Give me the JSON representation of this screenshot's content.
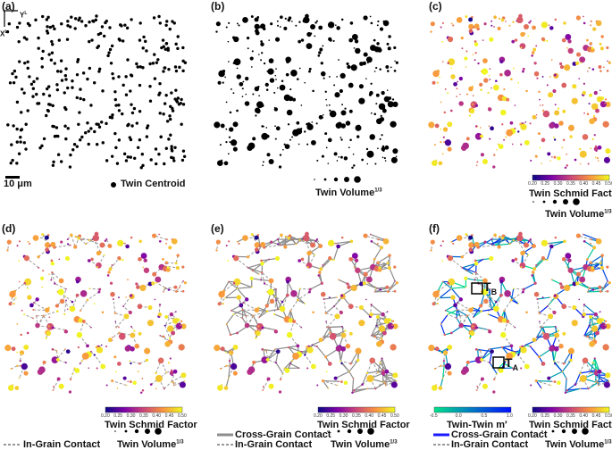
{
  "panels": {
    "a": {
      "label": "(a)",
      "legend": "Twin Centroid",
      "scalebar": "10 μm",
      "axis_y": "Y",
      "axis_x": "X",
      "axis_sup": "L"
    },
    "b": {
      "label": "(b)",
      "size_legend": "Twin Volume",
      "size_sup": "1/3"
    },
    "c": {
      "label": "(c)",
      "color_legend": "Twin Schmid Factor",
      "size_legend": "Twin Volume",
      "size_sup": "1/3"
    },
    "d": {
      "label": "(d)",
      "color_legend": "Twin Schmid Factor",
      "size_legend": "Twin Volume",
      "size_sup": "1/3",
      "in_grain": "In-Grain Contact"
    },
    "e": {
      "label": "(e)",
      "color_legend": "Twin Schmid Factor",
      "size_legend": "Twin Volume",
      "size_sup": "1/3",
      "cross_grain": "Cross-Grain Contact",
      "in_grain": "In-Grain Contact"
    },
    "f": {
      "label": "(f)",
      "color_legend": "Twin Schmid Factor",
      "mprime_legend": "Twin-Twin m′",
      "size_legend": "Twin Volume",
      "size_sup": "1/3",
      "cross_grain": "Cross-Grain Contact",
      "in_grain": "In-Grain Contact",
      "twin_a": "T",
      "twin_a_sub": "A",
      "twin_b": "T",
      "twin_b_sub": "B"
    }
  },
  "schmid_colorbar": {
    "ticks": [
      "0.20",
      "0.25",
      "0.30",
      "0.35",
      "0.40",
      "0.45",
      "0.50"
    ],
    "colors": [
      "#0d0887",
      "#7e03a8",
      "#cc4778",
      "#f89540",
      "#f0f921"
    ]
  },
  "mprime_colorbar": {
    "ticks": [
      "-0.5",
      "0.0",
      "0.5",
      "1.0"
    ],
    "colors": [
      "#00e08a",
      "#0010ff"
    ]
  },
  "colors": {
    "centroid": "#000000",
    "in_grain": "#999999",
    "cross_grain_gray": "#8c8c8c",
    "cross_grain_blue": "#1a1aff"
  }
}
